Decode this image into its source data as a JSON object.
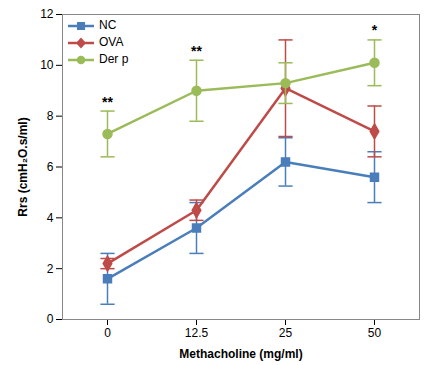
{
  "chart_data": {
    "type": "line",
    "x_label": "Methacholine (mg/ml)",
    "y_label": "Rrs (cmH₂O.s/ml)",
    "categories": [
      0,
      12.5,
      25,
      50
    ],
    "ylim": [
      0,
      12
    ],
    "yticks": [
      0,
      2,
      4,
      6,
      8,
      10,
      12
    ],
    "grid": false,
    "legend": "top-left",
    "series": [
      {
        "name": "NC",
        "color": "#4a7ebb",
        "marker": "square",
        "values": [
          1.6,
          3.6,
          6.2,
          5.6
        ],
        "errors": [
          1.0,
          1.0,
          0.95,
          1.0
        ]
      },
      {
        "name": "OVA",
        "color": "#be4b48",
        "marker": "diamond",
        "values": [
          2.2,
          4.3,
          9.1,
          7.4
        ],
        "errors": [
          0.2,
          0.4,
          1.9,
          1.0
        ]
      },
      {
        "name": "Der p",
        "color": "#9bbb59",
        "marker": "circle",
        "values": [
          7.3,
          9.0,
          9.3,
          10.1
        ],
        "errors": [
          0.9,
          1.2,
          0.8,
          0.9
        ]
      }
    ],
    "annotations": [
      {
        "text": "**",
        "category": 0
      },
      {
        "text": "**",
        "category": 12.5
      },
      {
        "text": "*",
        "category": 50
      }
    ]
  }
}
